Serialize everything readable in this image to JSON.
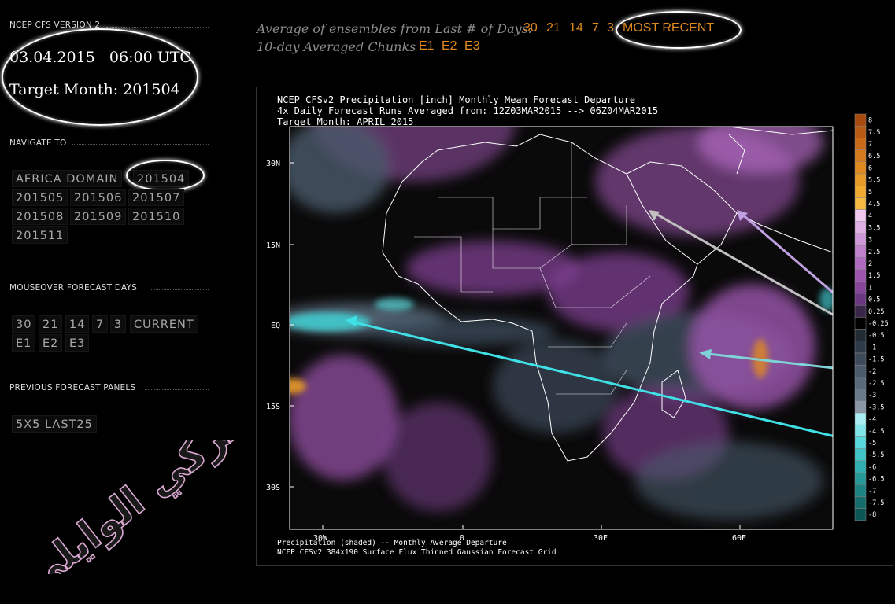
{
  "sidebar": {
    "version_label": "NCEP CFS VERSION 2",
    "date": "03.04.2015   06:00 UTC",
    "target_month": "Target Month: 201504",
    "navigate_label": "NAVIGATE TO",
    "nav_items": [
      "AFRICA DOMAIN",
      "201504",
      "201505",
      "201506",
      "201507",
      "201508",
      "201509",
      "201510",
      "201511"
    ],
    "mouseover_label": "MOUSEOVER FORECAST DAYS",
    "mouseover_items": [
      "30",
      "21",
      "14",
      "7",
      "3",
      "CURRENT",
      "E1",
      "E2",
      "E3"
    ],
    "previous_label": "PREVIOUS FORECAST PANELS",
    "previous_items": [
      "5X5 LAST25"
    ]
  },
  "header": {
    "avg_label": "Average of ensembles from Last # of Days:",
    "avg_links": [
      "30",
      "21",
      "14",
      "7",
      "3",
      "MOST RECENT"
    ],
    "chunk_label": "10-day Averaged Chunks",
    "chunk_links": [
      "E1",
      "E2",
      "E3"
    ]
  },
  "map": {
    "title_line1": "NCEP CFSv2 Precipitation [inch] Monthly Mean Forecast Departure",
    "title_line2": "4x Daily Forecast Runs Averaged from: 12Z03MAR2015 --> 06Z04MAR2015",
    "title_line3": "Target Month: APRIL 2015",
    "lat_labels": [
      "30N",
      "15N",
      "EQ",
      "15S",
      "30S"
    ],
    "lon_labels": [
      "30W",
      "0",
      "30E",
      "60E"
    ],
    "footer_line1": "Precipitation (shaded) -- Monthly Average Departure",
    "footer_line2": "NCEP CFSv2 384x190 Surface Flux Thinned Gaussian Forecast Grid",
    "colorbar": [
      {
        "v": "8",
        "c": "#a84a10"
      },
      {
        "v": "7.5",
        "c": "#b85a14"
      },
      {
        "v": "7",
        "c": "#c86a18"
      },
      {
        "v": "6.5",
        "c": "#d47a1c"
      },
      {
        "v": "6",
        "c": "#de8a20"
      },
      {
        "v": "5.5",
        "c": "#e89a28"
      },
      {
        "v": "5",
        "c": "#f0aa30"
      },
      {
        "v": "4.5",
        "c": "#f5b840"
      },
      {
        "v": "4",
        "c": "#f0c8f0"
      },
      {
        "v": "3.5",
        "c": "#e0b0e4"
      },
      {
        "v": "3",
        "c": "#d098d8"
      },
      {
        "v": "2.5",
        "c": "#c080cc"
      },
      {
        "v": "2",
        "c": "#b06ac0"
      },
      {
        "v": "1.5",
        "c": "#9c55ae"
      },
      {
        "v": "1",
        "c": "#86459a"
      },
      {
        "v": "0.5",
        "c": "#6a3880"
      },
      {
        "v": "0.25",
        "c": "#3a2648"
      },
      {
        "v": "-0.25",
        "c": "#000000"
      },
      {
        "v": "-0.5",
        "c": "#222a34"
      },
      {
        "v": "-1",
        "c": "#2e3a48"
      },
      {
        "v": "-1.5",
        "c": "#3c4a5a"
      },
      {
        "v": "-2",
        "c": "#4a5a6a"
      },
      {
        "v": "-2.5",
        "c": "#5a6a7a"
      },
      {
        "v": "-3",
        "c": "#6a7a8a"
      },
      {
        "v": "-3.5",
        "c": "#8a98a6"
      },
      {
        "v": "-4",
        "c": "#a8eef0"
      },
      {
        "v": "-4.5",
        "c": "#80e4e8"
      },
      {
        "v": "-5",
        "c": "#58d8dc"
      },
      {
        "v": "-5.5",
        "c": "#40c4c8"
      },
      {
        "v": "-6",
        "c": "#30aeb0"
      },
      {
        "v": "-6.5",
        "c": "#269898"
      },
      {
        "v": "-7",
        "c": "#1c8282"
      },
      {
        "v": "-7.5",
        "c": "#146c6c"
      },
      {
        "v": "-8",
        "c": "#0c5656"
      }
    ]
  },
  "watermark": "تركي الوايلي",
  "colors": {
    "accent": "#e08a1e",
    "positive": "#9c55ae",
    "negative": "#4a5a6a",
    "strong_negative": "#40c4c8"
  }
}
